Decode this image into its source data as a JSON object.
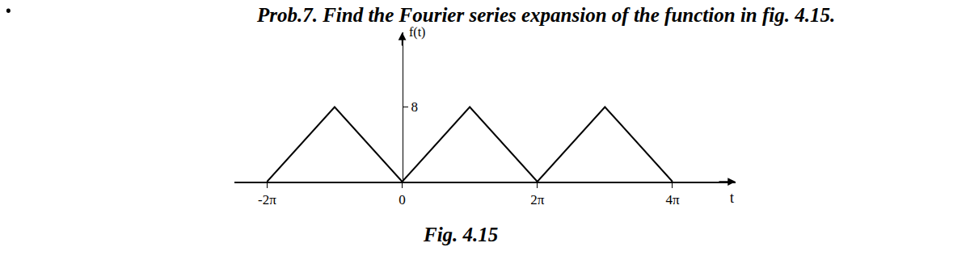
{
  "chart_data": {
    "type": "line",
    "title": "Prob.7. Find the Fourier series expansion of the function in fig. 4.15.",
    "caption": "Fig. 4.15",
    "xlabel": "t",
    "ylabel": "f(t)",
    "x": [
      -6.2832,
      -3.1416,
      0,
      3.1416,
      6.2832,
      9.4248,
      12.5664
    ],
    "values": [
      0,
      8,
      0,
      8,
      0,
      8,
      0
    ],
    "color": "#000000",
    "xlim": [
      -7.8,
      15.5
    ],
    "xticks": [
      {
        "value": -6.2832,
        "label": "-2π"
      },
      {
        "value": 0,
        "label": "0"
      },
      {
        "value": 6.2832,
        "label": "2π"
      },
      {
        "value": 12.5664,
        "label": "4π"
      }
    ],
    "ylim": [
      0,
      16
    ],
    "yticks": [
      8
    ],
    "grid": false
  }
}
